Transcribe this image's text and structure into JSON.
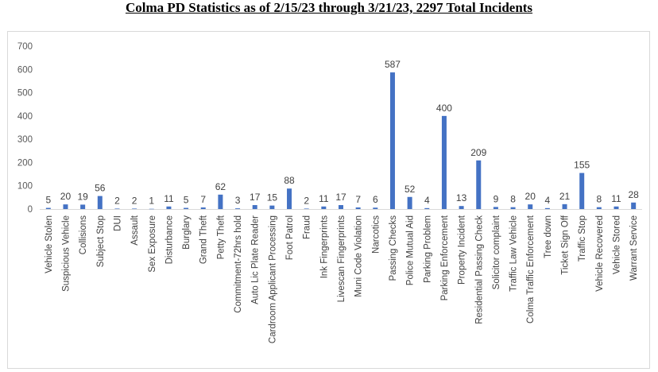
{
  "chart_data": {
    "type": "bar",
    "title": "Colma PD Statistics as of 2/15/23 through 3/21/23, 2297 Total Incidents",
    "xlabel": "",
    "ylabel": "",
    "ylim": [
      0,
      700
    ],
    "yticks": [
      0,
      100,
      200,
      300,
      400,
      500,
      600,
      700
    ],
    "grid": false,
    "legend": "none",
    "bar_color": "#4472c4",
    "categories": [
      "Vehicle Stolen",
      "Suspicious Vehicle",
      "Collisions",
      "Subject Stop",
      "DUI",
      "Assault",
      "Sex Exposure",
      "Disturbance",
      "Burglary",
      "Grand Theft",
      "Petty Theft",
      "Commitment-72hrs hold",
      "Auto Lic Plate Reader",
      "Cardroom Applicant Processing",
      "Foot Patrol",
      "Fraud",
      "Ink Fingerprints",
      "Livescan Fingerprints",
      "Muni Code Violation",
      "Narcotics",
      "Passing Checks",
      "Police Mutual Aid",
      "Parking Problem",
      "Parking Enforcement",
      "Property Incident",
      "Residential Passing Check",
      "Solicitor complaint",
      "Traffic Law Vehicle",
      "Colma Traffic Enforcement",
      "Tree down",
      "Ticket Sign Off",
      "Traffic Stop",
      "Vehicle Recovered",
      "Vehicle Stored",
      "Warrant Service"
    ],
    "values": [
      5,
      20,
      19,
      56,
      2,
      2,
      1,
      11,
      5,
      7,
      62,
      3,
      17,
      15,
      88,
      2,
      11,
      17,
      7,
      6,
      587,
      52,
      4,
      400,
      13,
      209,
      9,
      8,
      20,
      4,
      21,
      155,
      8,
      11,
      28
    ]
  }
}
